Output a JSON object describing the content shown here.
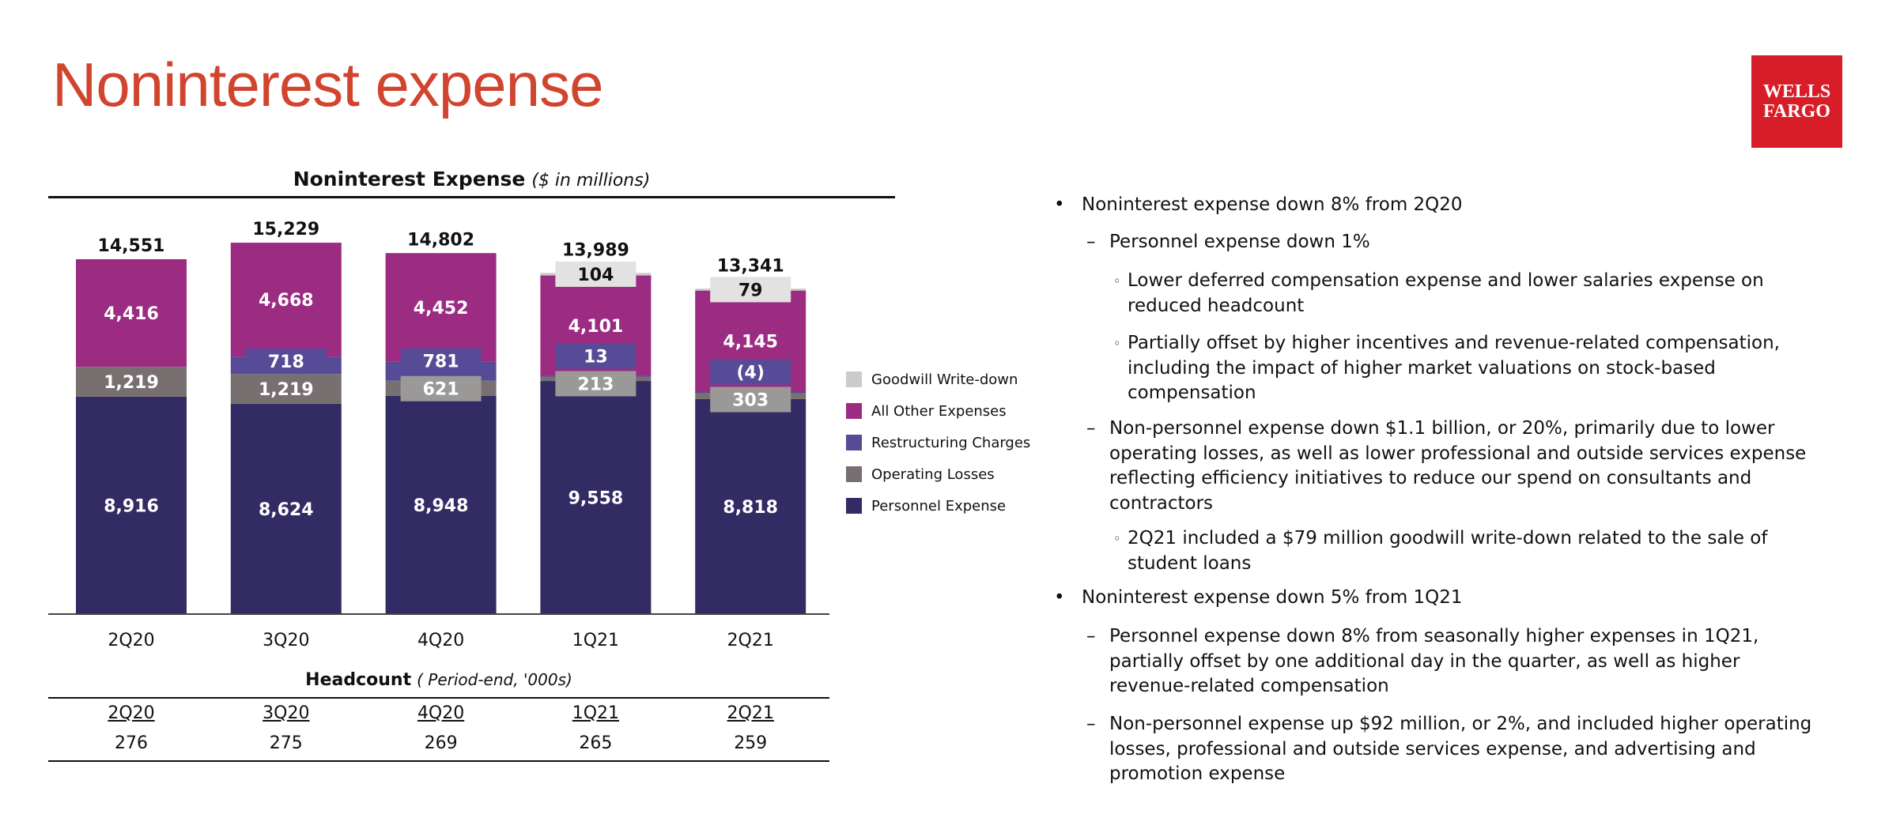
{
  "page_title": "Noninterest expense",
  "logo": {
    "line1": "WELLS",
    "line2": "FARGO"
  },
  "chart_data": {
    "type": "bar",
    "stacked": true,
    "title": "Noninterest Expense",
    "subtitle": "($ in millions)",
    "categories": [
      "2Q20",
      "3Q20",
      "4Q20",
      "1Q21",
      "2Q21"
    ],
    "totals": [
      "14,551",
      "15,229",
      "14,802",
      "13,989",
      "13,341"
    ],
    "total_values": [
      14551,
      15229,
      14802,
      13989,
      13341
    ],
    "series": [
      {
        "name": "Personnel Expense",
        "color": "#332c64",
        "values": [
          8916,
          8624,
          8948,
          9558,
          8818
        ],
        "labels": [
          "8,916",
          "8,624",
          "8,948",
          "9,558",
          "8,818"
        ]
      },
      {
        "name": "Operating Losses",
        "color": "#787070",
        "values": [
          1219,
          1219,
          621,
          213,
          303
        ],
        "labels": [
          "1,219",
          "1,219",
          "621",
          "213",
          "303"
        ]
      },
      {
        "name": "Restructuring Charges",
        "color": "#574a96",
        "values": [
          null,
          718,
          781,
          13,
          -4
        ],
        "labels": [
          null,
          "718",
          "781",
          "13",
          "(4)"
        ]
      },
      {
        "name": "All Other Expenses",
        "color": "#9b2c82",
        "values": [
          4416,
          4668,
          4452,
          4101,
          4145
        ],
        "labels": [
          "4,416",
          "4,668",
          "4,452",
          "4,101",
          "4,145"
        ]
      },
      {
        "name": "Goodwill Write-down",
        "color": "#cdcaca",
        "values": [
          null,
          null,
          null,
          104,
          79
        ],
        "labels": [
          null,
          null,
          null,
          "104",
          "79"
        ]
      }
    ],
    "legend_order": [
      "Goodwill Write-down",
      "All Other Expenses",
      "Restructuring Charges",
      "Operating Losses",
      "Personnel Expense"
    ],
    "legend": "right"
  },
  "headcount": {
    "title": "Headcount",
    "subtitle": "( Period-end, '000s)",
    "quarters": [
      "2Q20",
      "3Q20",
      "4Q20",
      "1Q21",
      "2Q21"
    ],
    "values": [
      "276",
      "275",
      "269",
      "265",
      "259"
    ]
  },
  "bullets": [
    {
      "level": 1,
      "text": "Noninterest expense down 8% from 2Q20"
    },
    {
      "level": 2,
      "text": "Personnel expense down 1%"
    },
    {
      "level": 3,
      "text": "Lower deferred compensation expense and lower salaries expense on reduced headcount"
    },
    {
      "level": 3,
      "text": "Partially offset by higher incentives and revenue-related compensation, including the impact of higher market valuations on stock-based compensation"
    },
    {
      "level": 2,
      "text": "Non-personnel expense down $1.1 billion, or 20%, primarily due to lower operating losses, as well as lower professional and outside services expense reflecting efficiency initiatives to reduce our spend on consultants and contractors"
    },
    {
      "level": 3,
      "text": "2Q21 included a $79 million goodwill write-down related to the sale of student loans"
    },
    {
      "level": 1,
      "text": "Noninterest expense down 5% from 1Q21"
    },
    {
      "level": 2,
      "text": "Personnel expense down 8% from seasonally higher expenses in 1Q21, partially offset by one additional day in the quarter, as well as higher revenue-related compensation"
    },
    {
      "level": 2,
      "text": "Non-personnel expense up $92 million, or 2%, and included higher operating losses, professional and outside services expense, and advertising and promotion expense"
    }
  ],
  "markers": {
    "1": "•",
    "2": "–",
    "3": "◦"
  }
}
